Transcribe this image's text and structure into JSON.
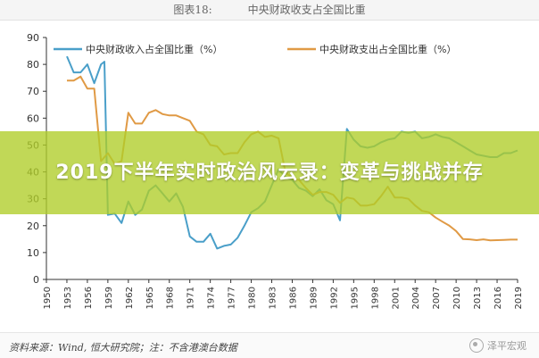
{
  "figure": {
    "number": "图表18:",
    "title": "中央财政收支占全国比重"
  },
  "overlay": {
    "headline": "2019下半年实时政治风云录：变革与挑战并存"
  },
  "footer": {
    "source": "资料来源：Wind, 恒大研究院；注：不含港澳台数据",
    "watermark": "泽平宏观"
  },
  "colors": {
    "revenue": "#4a9fc9",
    "expenditure": "#e09a45",
    "overlay": "#b0cd28"
  },
  "chart_data": {
    "type": "line",
    "title": "中央财政收支占全国比重",
    "xlabel": "",
    "ylabel": "",
    "xlim": [
      1950,
      2019
    ],
    "ylim": [
      0,
      90
    ],
    "yticks": [
      0,
      10,
      20,
      30,
      40,
      50,
      60,
      70,
      80,
      90
    ],
    "xticks": [
      1950,
      1953,
      1956,
      1959,
      1962,
      1965,
      1968,
      1971,
      1974,
      1977,
      1980,
      1983,
      1986,
      1989,
      1992,
      1995,
      1998,
      2001,
      2004,
      2007,
      2010,
      2013,
      2016,
      2019
    ],
    "legend_position": "top",
    "grid": false,
    "series": [
      {
        "name": "中央财政收入占全国比重（%）",
        "color": "#4a9fc9",
        "points": [
          [
            1953,
            83
          ],
          [
            1954,
            77
          ],
          [
            1955,
            77
          ],
          [
            1956,
            80
          ],
          [
            1957,
            73
          ],
          [
            1958,
            80
          ],
          [
            1958.5,
            81
          ],
          [
            1959,
            24
          ],
          [
            1960,
            24.5
          ],
          [
            1961,
            21
          ],
          [
            1962,
            29
          ],
          [
            1963,
            24
          ],
          [
            1964,
            26
          ],
          [
            1965,
            33
          ],
          [
            1966,
            35
          ],
          [
            1967,
            32
          ],
          [
            1968,
            29
          ],
          [
            1969,
            32
          ],
          [
            1970,
            27
          ],
          [
            1971,
            16
          ],
          [
            1972,
            14
          ],
          [
            1973,
            14
          ],
          [
            1974,
            17
          ],
          [
            1975,
            11.5
          ],
          [
            1976,
            12.5
          ],
          [
            1977,
            13
          ],
          [
            1978,
            15.5
          ],
          [
            1979,
            20
          ],
          [
            1980,
            25
          ],
          [
            1981,
            26.5
          ],
          [
            1982,
            29
          ],
          [
            1983,
            35
          ],
          [
            1984,
            41
          ],
          [
            1985,
            38
          ],
          [
            1986,
            37
          ],
          [
            1987,
            34
          ],
          [
            1988,
            33
          ],
          [
            1989,
            31
          ],
          [
            1990,
            33.5
          ],
          [
            1991,
            29.5
          ],
          [
            1992,
            28
          ],
          [
            1993,
            22
          ],
          [
            1994,
            56
          ],
          [
            1995,
            52
          ],
          [
            1996,
            49.5
          ],
          [
            1997,
            49
          ],
          [
            1998,
            49.5
          ],
          [
            1999,
            51
          ],
          [
            2000,
            52
          ],
          [
            2001,
            52.5
          ],
          [
            2002,
            55
          ],
          [
            2003,
            54.5
          ],
          [
            2004,
            55
          ],
          [
            2005,
            52.5
          ],
          [
            2006,
            53
          ],
          [
            2007,
            54
          ],
          [
            2008,
            53
          ],
          [
            2009,
            52.5
          ],
          [
            2010,
            51
          ],
          [
            2011,
            49.5
          ],
          [
            2012,
            48
          ],
          [
            2013,
            46.5
          ],
          [
            2014,
            46
          ],
          [
            2015,
            45.5
          ],
          [
            2016,
            45.5
          ],
          [
            2017,
            47
          ],
          [
            2018,
            47
          ],
          [
            2019,
            48
          ]
        ]
      },
      {
        "name": "中央财政支出占全国比重（%）",
        "color": "#e09a45",
        "points": [
          [
            1953,
            74
          ],
          [
            1954,
            74
          ],
          [
            1955,
            75.5
          ],
          [
            1956,
            71
          ],
          [
            1957,
            71
          ],
          [
            1958,
            44
          ],
          [
            1959,
            47
          ],
          [
            1960,
            43
          ],
          [
            1961,
            44
          ],
          [
            1962,
            62
          ],
          [
            1963,
            58
          ],
          [
            1964,
            58
          ],
          [
            1965,
            62
          ],
          [
            1966,
            63
          ],
          [
            1967,
            61.5
          ],
          [
            1968,
            61
          ],
          [
            1969,
            61
          ],
          [
            1970,
            60
          ],
          [
            1971,
            59
          ],
          [
            1972,
            55
          ],
          [
            1973,
            54
          ],
          [
            1974,
            50
          ],
          [
            1975,
            49.5
          ],
          [
            1976,
            46.5
          ],
          [
            1977,
            47
          ],
          [
            1978,
            47
          ],
          [
            1979,
            51
          ],
          [
            1980,
            54
          ],
          [
            1981,
            55
          ],
          [
            1982,
            53
          ],
          [
            1983,
            53.5
          ],
          [
            1984,
            52.5
          ],
          [
            1985,
            40
          ],
          [
            1986,
            37.5
          ],
          [
            1987,
            37
          ],
          [
            1988,
            34
          ],
          [
            1989,
            31.5
          ],
          [
            1990,
            32.5
          ],
          [
            1991,
            32.5
          ],
          [
            1992,
            31.5
          ],
          [
            1993,
            28.5
          ],
          [
            1994,
            30.5
          ],
          [
            1995,
            30
          ],
          [
            1996,
            27.5
          ],
          [
            1997,
            27.5
          ],
          [
            1998,
            28
          ],
          [
            1999,
            31
          ],
          [
            2000,
            34.5
          ],
          [
            2001,
            30.5
          ],
          [
            2002,
            30.5
          ],
          [
            2003,
            30
          ],
          [
            2004,
            27.5
          ],
          [
            2005,
            25.5
          ],
          [
            2006,
            25
          ],
          [
            2007,
            23
          ],
          [
            2008,
            21.5
          ],
          [
            2009,
            20
          ],
          [
            2010,
            18
          ],
          [
            2011,
            15
          ],
          [
            2012,
            14.9
          ],
          [
            2013,
            14.6
          ],
          [
            2014,
            14.9
          ],
          [
            2015,
            14.5
          ],
          [
            2016,
            14.6
          ],
          [
            2017,
            14.7
          ],
          [
            2018,
            14.8
          ],
          [
            2019,
            14.8
          ]
        ]
      }
    ]
  }
}
